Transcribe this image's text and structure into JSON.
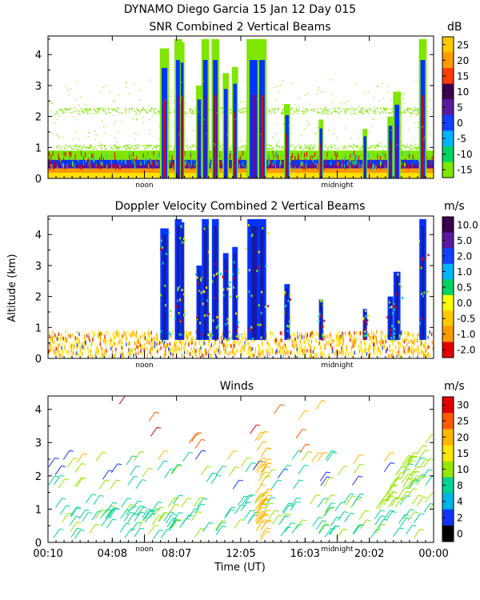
{
  "header": {
    "line1": "DYNAMO Diego Garcia  15 Jan 12 Day 015"
  },
  "shared": {
    "ylabel": "Altitude (km)",
    "xlabel": "Time (UT)",
    "noon_label": "noon",
    "midnight_label": "midnight",
    "ytick_labels": [
      "0",
      "1",
      "2",
      "3",
      "4"
    ],
    "xtick_labels": [
      "00:10",
      "04:08",
      "08:07",
      "12:05",
      "16:03",
      "20:02",
      "00:00"
    ]
  },
  "colors": {
    "green": "#7fe600",
    "teal": "#00c8c8",
    "blue": "#0033ff",
    "darkblue": "#1a1aa0",
    "purple": "#5a0fa0",
    "red": "#e00000",
    "orange": "#ff9900",
    "yellow": "#ffe000"
  },
  "chart_data": [
    {
      "type": "heatmap",
      "title": "SNR Combined 2 Vertical Beams",
      "ylabel": "Altitude (km)",
      "ylim": [
        0,
        4.6
      ],
      "colorbar": {
        "unit": "dB",
        "labels": [
          "25",
          "20",
          "15",
          "10",
          "5",
          "0",
          "-5",
          "-10",
          "-15"
        ],
        "colors": [
          "#ffc800",
          "#ff9900",
          "#ff3c00",
          "#3c0050",
          "#5a1aa0",
          "#1440ff",
          "#00b4ff",
          "#00d264",
          "#7fe600"
        ]
      },
      "features": [
        {
          "layer": "ground layer",
          "altitude_km": [
            0,
            0.6
          ]
        },
        {
          "layer": "thin echo layer",
          "altitude_km": [
            2.1,
            2.3
          ]
        },
        {
          "layer": "thin echo layer",
          "altitude_km": [
            0.95,
            1.1
          ]
        }
      ]
    },
    {
      "type": "heatmap",
      "title": "Doppler Velocity Combined 2 Vertical Beams",
      "ylabel": "Altitude (km)",
      "ylim": [
        0,
        4.6
      ],
      "colorbar": {
        "unit": "m/s",
        "labels": [
          "10.0",
          "5.0",
          "2.0",
          "1.0",
          "0.5",
          "0.0",
          "-0.5",
          "-1.0",
          "-2.0"
        ],
        "colors": [
          "#3c0050",
          "#5a1aa0",
          "#1440ff",
          "#00b4ff",
          "#00d264",
          "#ffff00",
          "#ffc800",
          "#ff9900",
          "#e00000"
        ]
      }
    },
    {
      "type": "scatter",
      "title": "Winds",
      "xlabel": "Time (UT)",
      "ylabel": "Altitude (km)",
      "ylim": [
        0,
        4.4
      ],
      "colorbar": {
        "unit": "m/s",
        "labels": [
          "30",
          "25",
          "20",
          "15",
          "10",
          "8",
          "4",
          "2",
          "0"
        ],
        "colors": [
          "#e00000",
          "#ff5a00",
          "#ffb400",
          "#ffe600",
          "#96e600",
          "#00d296",
          "#00b4e6",
          "#1432ff",
          "#000000"
        ]
      }
    }
  ]
}
